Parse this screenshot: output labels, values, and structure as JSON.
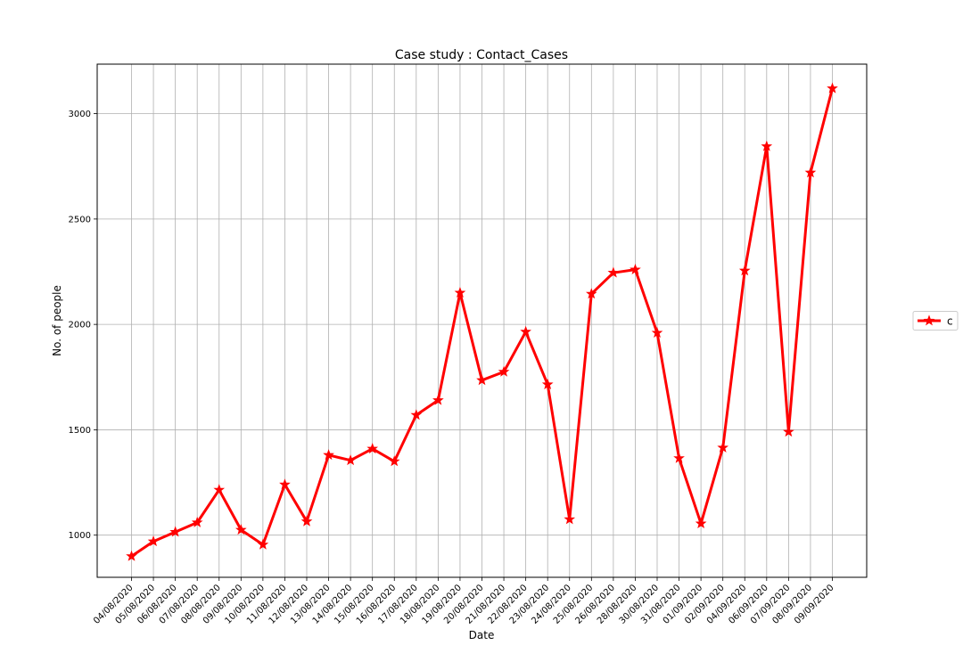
{
  "chart_data": {
    "type": "line",
    "title": "Case study : Contact_Cases",
    "xlabel": "Date",
    "ylabel": "No. of people",
    "categories": [
      "04/08/2020",
      "05/08/2020",
      "06/08/2020",
      "07/08/2020",
      "08/08/2020",
      "09/08/2020",
      "10/08/2020",
      "11/08/2020",
      "12/08/2020",
      "13/08/2020",
      "14/08/2020",
      "15/08/2020",
      "16/08/2020",
      "17/08/2020",
      "18/08/2020",
      "19/08/2020",
      "20/08/2020",
      "21/08/2020",
      "22/08/2020",
      "23/08/2020",
      "24/08/2020",
      "25/08/2020",
      "26/08/2020",
      "28/08/2020",
      "30/08/2020",
      "31/08/2020",
      "01/09/2020",
      "02/09/2020",
      "04/09/2020",
      "06/09/2020",
      "07/09/2020",
      "08/09/2020",
      "09/09/2020"
    ],
    "series": [
      {
        "name": "c",
        "color": "#ff0000",
        "marker": "star",
        "values": [
          900,
          970,
          1015,
          1060,
          1215,
          1025,
          955,
          1240,
          1065,
          1380,
          1355,
          1410,
          1350,
          1570,
          1640,
          2150,
          1735,
          1775,
          1965,
          1715,
          1075,
          2145,
          2245,
          2260,
          1960,
          1365,
          1055,
          1415,
          2255,
          2845,
          1490,
          2720,
          3120
        ]
      }
    ],
    "yticks": [
      1000,
      1500,
      2000,
      2500,
      3000
    ],
    "ylim": [
      800,
      3235
    ],
    "grid": true,
    "legend": "outside-right"
  }
}
